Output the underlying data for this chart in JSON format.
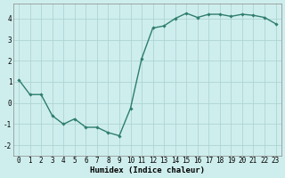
{
  "x": [
    0,
    1,
    2,
    3,
    4,
    5,
    6,
    7,
    8,
    9,
    10,
    11,
    12,
    13,
    14,
    15,
    16,
    17,
    18,
    19,
    20,
    21,
    22,
    23
  ],
  "y": [
    1.1,
    0.4,
    0.4,
    -0.6,
    -1.0,
    -0.75,
    -1.15,
    -1.15,
    -1.4,
    -1.55,
    -0.25,
    2.1,
    3.55,
    3.65,
    4.0,
    4.25,
    4.05,
    4.2,
    4.2,
    4.1,
    4.2,
    4.15,
    4.05,
    3.75
  ],
  "line_color": "#2e7d6e",
  "marker": "D",
  "markersize": 1.8,
  "linewidth": 1.0,
  "bg_color": "#ceeeed",
  "grid_color": "#aed4d4",
  "xlabel": "Humidex (Indice chaleur)",
  "xlim": [
    -0.5,
    23.5
  ],
  "ylim": [
    -2.5,
    4.7
  ],
  "yticks": [
    -2,
    -1,
    0,
    1,
    2,
    3,
    4
  ],
  "xticks": [
    0,
    1,
    2,
    3,
    4,
    5,
    6,
    7,
    8,
    9,
    10,
    11,
    12,
    13,
    14,
    15,
    16,
    17,
    18,
    19,
    20,
    21,
    22,
    23
  ],
  "xlabel_fontsize": 6.5,
  "tick_fontsize": 5.5
}
